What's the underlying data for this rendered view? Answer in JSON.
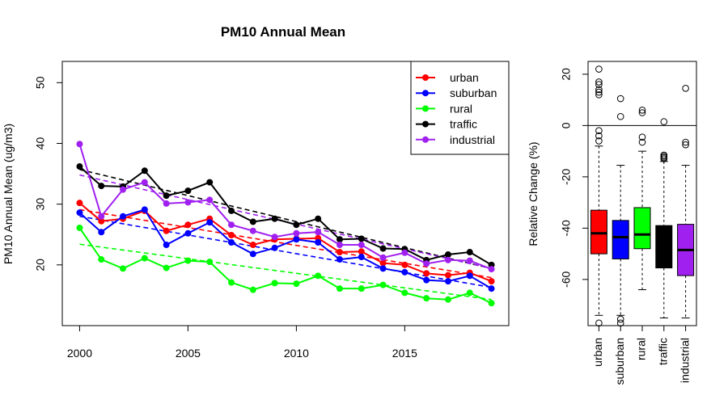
{
  "colors": {
    "urban": "#ff0000",
    "suburban": "#0000ff",
    "rural": "#00ff00",
    "traffic": "#000000",
    "industrial": "#a020f0"
  },
  "chart_data": [
    {
      "type": "line",
      "title": "PM10 Annual Mean",
      "xlabel": "",
      "ylabel": "PM10 Annual Mean (ug/m3)",
      "xlim": [
        1999.2,
        2019.8
      ],
      "ylim": [
        10.0,
        53.5
      ],
      "xticks": [
        2000,
        2005,
        2010,
        2015
      ],
      "yticks": [
        20,
        30,
        40,
        50
      ],
      "legend_position": "top-right",
      "x": [
        2000,
        2001,
        2002,
        2003,
        2004,
        2005,
        2006,
        2007,
        2008,
        2009,
        2010,
        2011,
        2012,
        2013,
        2014,
        2015,
        2016,
        2017,
        2018,
        2019
      ],
      "series": [
        {
          "name": "urban",
          "values": [
            30.2,
            27.2,
            27.6,
            28.9,
            25.6,
            26.6,
            27.6,
            24.9,
            23.3,
            24.2,
            24.3,
            24.4,
            22.1,
            22.2,
            20.3,
            20.0,
            18.6,
            18.3,
            18.7,
            17.3
          ],
          "trend": [
            29.1,
            17.9
          ]
        },
        {
          "name": "suburban",
          "values": [
            28.6,
            25.4,
            28.0,
            29.1,
            23.3,
            25.2,
            27.0,
            23.7,
            21.8,
            22.8,
            24.2,
            23.7,
            20.9,
            21.3,
            19.4,
            18.8,
            17.5,
            17.3,
            18.2,
            16.1
          ],
          "trend": [
            28.0,
            16.3
          ]
        },
        {
          "name": "rural",
          "values": [
            26.1,
            20.9,
            19.4,
            21.1,
            19.5,
            20.7,
            20.5,
            17.1,
            15.9,
            17.0,
            16.9,
            18.2,
            16.1,
            16.1,
            16.7,
            15.4,
            14.5,
            14.3,
            15.4,
            13.7
          ],
          "trend": [
            23.4,
            14.3
          ]
        },
        {
          "name": "traffic",
          "values": [
            36.2,
            33.0,
            32.9,
            35.5,
            31.4,
            32.2,
            33.6,
            28.9,
            27.1,
            27.6,
            26.6,
            27.6,
            24.2,
            24.3,
            22.7,
            22.6,
            20.8,
            21.7,
            22.1,
            20.0
          ],
          "trend": [
            35.7,
            19.4
          ]
        },
        {
          "name": "industrial",
          "values": [
            39.9,
            28.0,
            32.4,
            33.6,
            30.1,
            30.3,
            30.7,
            26.6,
            25.6,
            24.6,
            25.2,
            25.4,
            23.3,
            23.3,
            21.2,
            22.0,
            20.2,
            20.8,
            20.7,
            19.3
          ],
          "trend": [
            34.8,
            19.4
          ]
        }
      ]
    },
    {
      "type": "boxplot",
      "title": "",
      "xlabel": "",
      "ylabel": "Relative Change (%)",
      "ylim": [
        -78,
        25
      ],
      "yticks": [
        20,
        0,
        -20,
        -40,
        -60
      ],
      "reference_line": 0,
      "categories": [
        "urban",
        "suburban",
        "rural",
        "traffic",
        "industrial"
      ],
      "boxes": [
        {
          "name": "urban",
          "q1": -50.0,
          "median": -42.0,
          "q3": -33.0,
          "whisker_low": -74.0,
          "whisker_high": -8.0,
          "outliers": [
            22,
            17,
            16,
            14,
            13,
            12,
            -2,
            -4,
            -6,
            -77
          ]
        },
        {
          "name": "suburban",
          "q1": -52.0,
          "median": -43.5,
          "q3": -37.0,
          "whisker_low": -74.0,
          "whisker_high": -15.5,
          "outliers": [
            10.5,
            3.5,
            -75.5,
            -77
          ]
        },
        {
          "name": "rural",
          "q1": -48.0,
          "median": -42.5,
          "q3": -32.0,
          "whisker_low": -64.0,
          "whisker_high": -10.0,
          "outliers": [
            6,
            5,
            -4.5,
            -6.5
          ]
        },
        {
          "name": "traffic",
          "q1": -55.5,
          "median": -46.0,
          "q3": -39.0,
          "whisker_low": -75.0,
          "whisker_high": -14.0,
          "outliers": [
            1.5,
            -11.5,
            -12,
            -12.5,
            -13
          ]
        },
        {
          "name": "industrial",
          "q1": -58.5,
          "median": -48.5,
          "q3": -38.5,
          "whisker_low": -75.0,
          "whisker_high": -15.5,
          "outliers": [
            14.5,
            -6.5,
            -7.5
          ]
        }
      ]
    }
  ]
}
